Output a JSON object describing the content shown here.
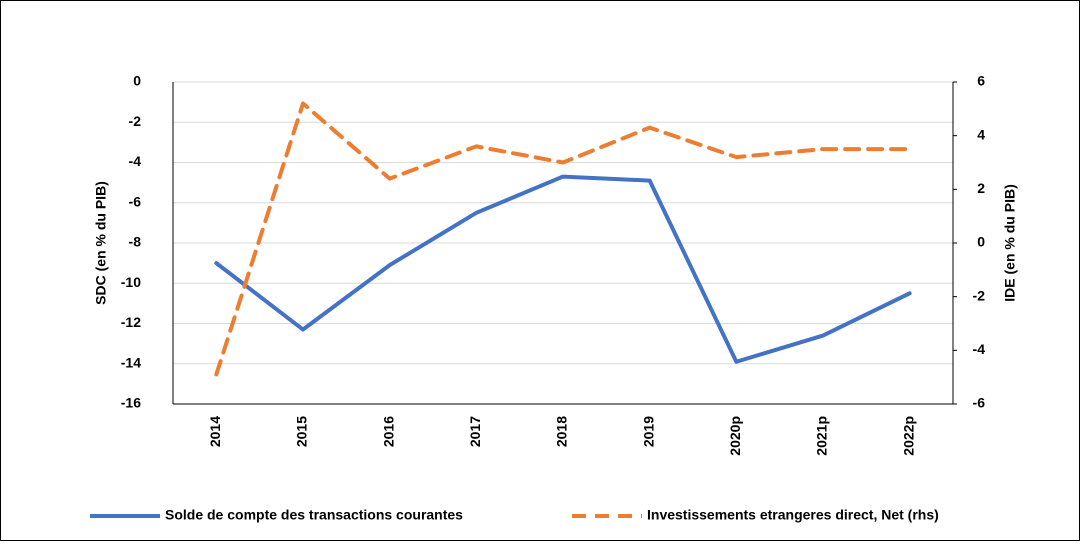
{
  "chart_data": {
    "type": "line",
    "categories": [
      "2014",
      "2015",
      "2016",
      "2017",
      "2018",
      "2019",
      "2020p",
      "2021p",
      "2022p"
    ],
    "series": [
      {
        "name": "Solde de compte des transactions courantes",
        "color": "#4472c4",
        "dash": false,
        "values": [
          -9.0,
          -12.3,
          -9.1,
          -6.5,
          -4.7,
          -4.9,
          -13.9,
          -12.6,
          -10.5
        ]
      },
      {
        "name": "Investissements etrangeres direct, Net (rhs)",
        "color": "#ed7d31",
        "dash": true,
        "axis": "y2",
        "values": [
          -4.9,
          5.2,
          2.4,
          3.6,
          3.0,
          4.3,
          3.2,
          3.5,
          3.5
        ]
      }
    ],
    "ylabel": "SDC (en % du PIB)",
    "y2label": "IDE (en % du PIB)",
    "ylim": [
      -16,
      0
    ],
    "yticks": [
      0,
      -2,
      -4,
      -6,
      -8,
      -10,
      -12,
      -14,
      -16
    ],
    "y2lim": [
      -6,
      6
    ],
    "y2ticks": [
      6,
      4,
      2,
      0,
      -2,
      -4,
      -6
    ],
    "grid": true,
    "legend": "bottom"
  }
}
